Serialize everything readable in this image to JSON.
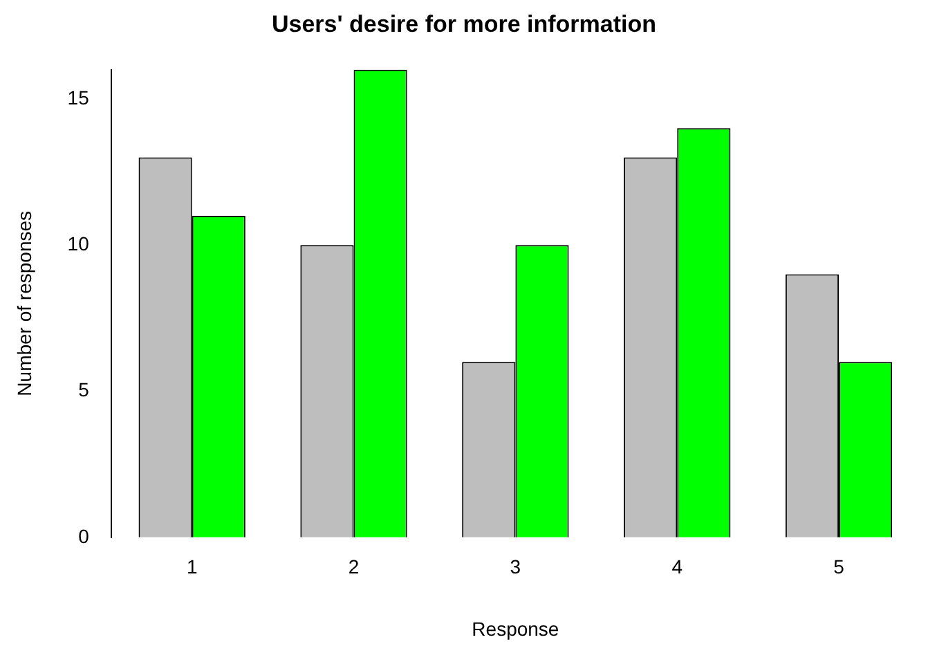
{
  "chart_data": {
    "type": "bar",
    "title": "Users' desire for more information",
    "xlabel": "Response",
    "ylabel": "Number of responses",
    "categories": [
      "1",
      "2",
      "3",
      "4",
      "5"
    ],
    "series": [
      {
        "color": "#bebebe",
        "values": [
          13,
          10,
          6,
          13,
          9
        ]
      },
      {
        "color": "#00ff00",
        "values": [
          11,
          16,
          10,
          14,
          6
        ]
      }
    ],
    "ylim": [
      0,
      16
    ],
    "yticks": [
      0,
      5,
      10,
      15
    ],
    "grid": false,
    "legend": false
  }
}
